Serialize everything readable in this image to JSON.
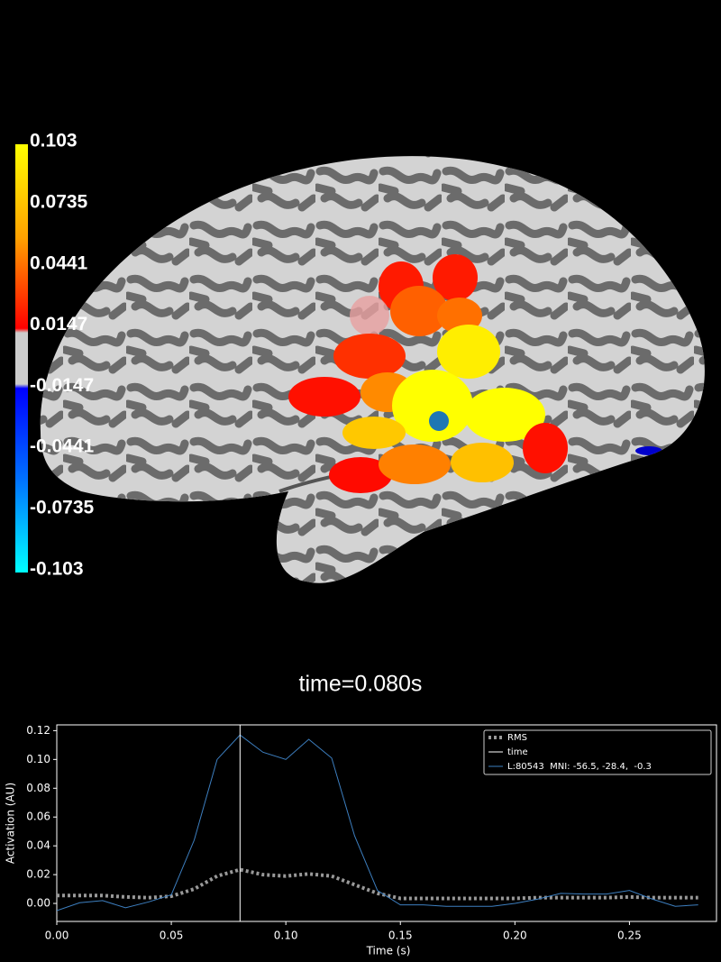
{
  "colorbar": {
    "ylim": [
      -0.103,
      0.103
    ],
    "yticks": [
      0.103,
      0.0735,
      0.0441,
      0.0147,
      -0.0147,
      -0.0441,
      -0.0735,
      -0.103
    ]
  },
  "time_label": "time=0.080s",
  "chart_data": {
    "type": "line",
    "x": [
      0,
      0.01,
      0.02,
      0.03,
      0.04,
      0.05,
      0.06,
      0.07,
      0.08,
      0.09,
      0.1,
      0.11,
      0.12,
      0.13,
      0.14,
      0.15,
      0.16,
      0.17,
      0.18,
      0.19,
      0.2,
      0.21,
      0.22,
      0.23,
      0.24,
      0.25,
      0.26,
      0.27,
      0.28
    ],
    "series": [
      {
        "name": "RMS",
        "color": "#999999",
        "style": "dotted",
        "values": [
          0.0055,
          0.0055,
          0.0055,
          0.0045,
          0.004,
          0.005,
          0.01,
          0.019,
          0.0235,
          0.02,
          0.019,
          0.0205,
          0.019,
          0.013,
          0.007,
          0.0035,
          0.0035,
          0.0035,
          0.0035,
          0.0035,
          0.0035,
          0.004,
          0.004,
          0.004,
          0.004,
          0.0045,
          0.004,
          0.004,
          0.004
        ]
      },
      {
        "name": "L:80543  MNI: -56.5, -28.4,  -0.3",
        "color": "#3d7fc0",
        "style": "solid",
        "values": [
          -0.005,
          0.0005,
          0.002,
          -0.003,
          0.001,
          0.006,
          0.044,
          0.1,
          0.117,
          0.105,
          0.1,
          0.114,
          0.101,
          0.047,
          0.009,
          -0.001,
          -0.001,
          -0.002,
          -0.002,
          -0.002,
          0,
          0.003,
          0.007,
          0.0065,
          0.0065,
          0.009,
          0.003,
          -0.002,
          -0.001
        ]
      }
    ],
    "time_marker": {
      "name": "time",
      "x": 0.08,
      "color": "#ffffff"
    },
    "xlabel": "Time (s)",
    "ylabel": "Activation (AU)",
    "xlim": [
      0,
      0.288
    ],
    "ylim": [
      -0.0125,
      0.124
    ],
    "xticks": [
      {
        "value": 0,
        "label": "0.00"
      },
      {
        "value": 0.05,
        "label": "0.05"
      },
      {
        "value": 0.1,
        "label": "0.10"
      },
      {
        "value": 0.15,
        "label": "0.15"
      },
      {
        "value": 0.2,
        "label": "0.20"
      },
      {
        "value": 0.25,
        "label": "0.25"
      }
    ],
    "yticks": [
      {
        "value": 0,
        "label": "0.00"
      },
      {
        "value": 0.02,
        "label": "0.02"
      },
      {
        "value": 0.04,
        "label": "0.04"
      },
      {
        "value": 0.06,
        "label": "0.06"
      },
      {
        "value": 0.08,
        "label": "0.08"
      },
      {
        "value": 0.1,
        "label": "0.10"
      },
      {
        "value": 0.12,
        "label": "0.12"
      }
    ],
    "legend": "upper right"
  }
}
